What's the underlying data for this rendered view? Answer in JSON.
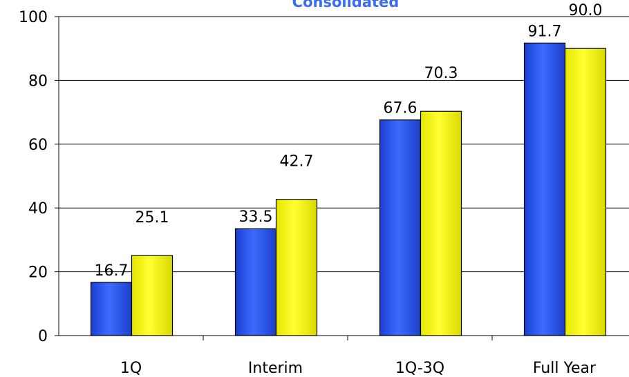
{
  "chart_data": {
    "type": "bar",
    "title": "Consolidated",
    "categories": [
      "1Q",
      "Interim",
      "1Q-3Q",
      "Full Year"
    ],
    "series": [
      {
        "values": [
          16.7,
          33.5,
          67.6,
          91.7
        ],
        "labels": [
          "16.7",
          "33.5",
          "67.6",
          "91.7"
        ],
        "color": "#2a53e8"
      },
      {
        "values": [
          25.1,
          42.7,
          70.3,
          90.0
        ],
        "labels": [
          "25.1",
          "42.7",
          "70.3",
          "90.0"
        ],
        "color": "#ffff00"
      }
    ],
    "ylim": [
      0,
      100
    ],
    "yticks": [
      0,
      20,
      40,
      60,
      80,
      100
    ],
    "ytick_labels": [
      "0",
      "20",
      "40",
      "60",
      "80",
      "100"
    ],
    "grid": true,
    "legend": "none"
  }
}
